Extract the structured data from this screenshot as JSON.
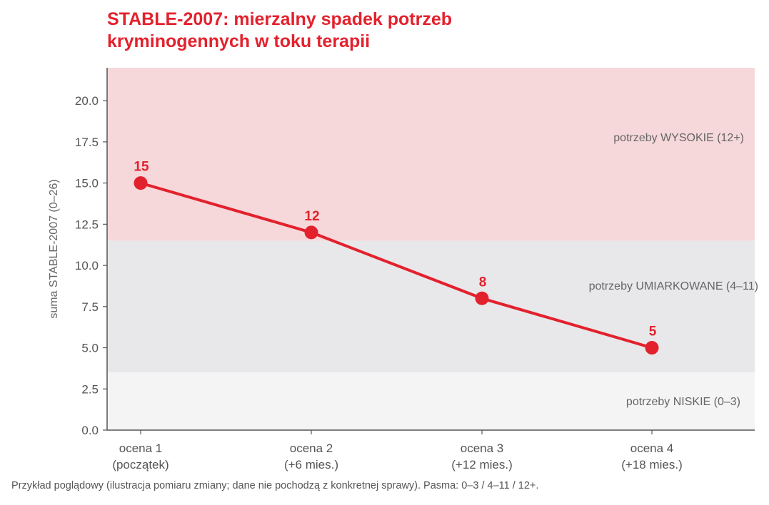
{
  "chart_data": {
    "type": "line",
    "title": [
      "STABLE-2007: mierzalny spadek potrzeb",
      "kryminogennych w toku terapii"
    ],
    "ylabel": "suma STABLE-2007 (0–26)",
    "xlabel": "",
    "ylim": [
      0,
      22
    ],
    "yticks": [
      "0.0",
      "2.5",
      "5.0",
      "7.5",
      "10.0",
      "12.5",
      "15.0",
      "17.5",
      "20.0"
    ],
    "grid": false,
    "categories": [
      [
        "ocena 1",
        "(początek)"
      ],
      [
        "ocena 2",
        "(+6 mies.)"
      ],
      [
        "ocena 3",
        "(+12 mies.)"
      ],
      [
        "ocena 4",
        "(+18 mies.)"
      ]
    ],
    "series": [
      {
        "values": [
          15,
          12,
          8,
          5
        ],
        "labels": [
          "15",
          "12",
          "8",
          "5"
        ],
        "color": "#e3212d"
      }
    ],
    "bands": [
      {
        "from": 0,
        "to": 3.5,
        "label": "potrzeby NISKIE (0–3)",
        "color": "#f4f4f4"
      },
      {
        "from": 3.5,
        "to": 11.5,
        "label": "potrzeby UMIARKOWANE (4–11)",
        "color": "#e8e8ea"
      },
      {
        "from": 11.5,
        "to": 22,
        "label": "potrzeby WYSOKIE (12+)",
        "color": "#f6d8da"
      }
    ]
  },
  "footnote": "Przykład poglądowy (ilustracja pomiaru zmiany; dane nie pochodzą z konkretnej sprawy). Pasma: 0–3 / 4–11 / 12+."
}
